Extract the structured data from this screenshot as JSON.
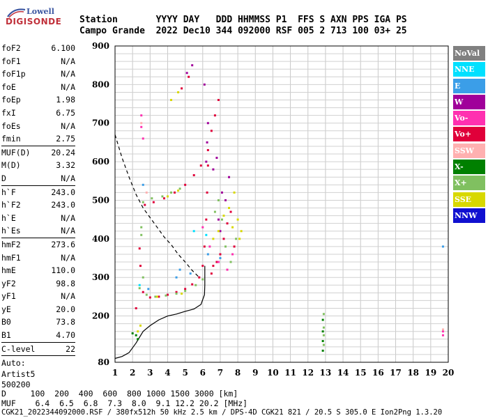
{
  "logo": {
    "brand": "Lowell",
    "product": "DIGISONDE"
  },
  "header": {
    "line1": "Station       YYYY DAY   DDD HHMMSS P1  FFS S AXN PPS IGA PS",
    "line2": "Campo Grande  2022 Dec10 344 092000 RSF 005 2 713 100 03+ 25"
  },
  "params": [
    {
      "k": "foF2",
      "v": "6.100"
    },
    {
      "k": "foF1",
      "v": "N/A"
    },
    {
      "k": "foF1p",
      "v": "N/A"
    },
    {
      "k": "foE",
      "v": "N/A"
    },
    {
      "k": "foEp",
      "v": "1.98"
    },
    {
      "k": "fxI",
      "v": "6.75"
    },
    {
      "k": "foEs",
      "v": "N/A"
    },
    {
      "k": "fmin",
      "v": "2.75"
    },
    {
      "k": "MUF(D)",
      "v": "20.24"
    },
    {
      "k": "M(D)",
      "v": "3.32"
    },
    {
      "k": "D",
      "v": "N/A"
    },
    {
      "k": "h`F",
      "v": "243.0"
    },
    {
      "k": "h`F2",
      "v": "243.0"
    },
    {
      "k": "h`E",
      "v": "N/A"
    },
    {
      "k": "h`Es",
      "v": "N/A"
    },
    {
      "k": "hmF2",
      "v": "273.6"
    },
    {
      "k": "hmF1",
      "v": "N/A"
    },
    {
      "k": "hmE",
      "v": "110.0"
    },
    {
      "k": "yF2",
      "v": "98.8"
    },
    {
      "k": "yF1",
      "v": "N/A"
    },
    {
      "k": "yE",
      "v": "20.0"
    },
    {
      "k": "B0",
      "v": "73.8"
    },
    {
      "k": "B1",
      "v": "4.70"
    },
    {
      "k": "C-level",
      "v": "22"
    }
  ],
  "auto": [
    "Auto:",
    "Artist5",
    "500200"
  ],
  "legend": [
    {
      "label": "NoVal",
      "bg": "#808080",
      "fg": "#ffffff"
    },
    {
      "label": "NNE",
      "bg": "#00e0ff",
      "fg": "#ffffff"
    },
    {
      "label": "E",
      "bg": "#3b9ee8",
      "fg": "#ffffff"
    },
    {
      "label": "W",
      "bg": "#a0009a",
      "fg": "#ffffff"
    },
    {
      "label": "Vo-",
      "bg": "#ff30b0",
      "fg": "#ffffff"
    },
    {
      "label": "Vo+",
      "bg": "#e0003a",
      "fg": "#ffffff"
    },
    {
      "label": "SSW",
      "bg": "#ffb0b0",
      "fg": "#ffffff"
    },
    {
      "label": "X-",
      "bg": "#008000",
      "fg": "#ffffff"
    },
    {
      "label": "X+",
      "bg": "#80c060",
      "fg": "#ffffff"
    },
    {
      "label": "SSE",
      "bg": "#d8d800",
      "fg": "#ffffff"
    },
    {
      "label": "NNW",
      "bg": "#1010d0",
      "fg": "#ffffff"
    }
  ],
  "footer": {
    "d_line": "D     100  200  400  600  800 1000 1500 3000 [km]",
    "muf_line": "MUF    6.4  6.5  6.8  7.3  8.0  9.1 12.2 20.2 [MHz]",
    "file_line": "CGK21_2022344092000.RSF / 380fx512h 50 kHz 2.5 km / DPS-4D CGK21 821 / 20.5 S 305.0 E Ion2Png 1.3.20"
  },
  "chart_data": {
    "type": "scatter",
    "title": "",
    "xlabel": "",
    "ylabel": "",
    "xlim": [
      1,
      20
    ],
    "ylim": [
      80,
      900
    ],
    "x_ticks": [
      "1",
      "2",
      "3",
      "4",
      "5",
      "6",
      "7",
      "8",
      "9",
      "10",
      "11",
      "12",
      "13",
      "14",
      "15",
      "16",
      "17",
      "18",
      "19",
      "20"
    ],
    "y_ticks": [
      "80",
      "200",
      "300",
      "400",
      "500",
      "600",
      "700",
      "800",
      "900"
    ],
    "grid": true,
    "series": [
      {
        "color": "#e0003a",
        "points": [
          [
            2.6,
            262
          ],
          [
            3.0,
            248
          ],
          [
            3.5,
            250
          ],
          [
            4.0,
            255
          ],
          [
            4.5,
            262
          ],
          [
            5.0,
            270
          ],
          [
            5.4,
            282
          ],
          [
            5.8,
            300
          ],
          [
            6.0,
            330
          ],
          [
            6.1,
            380
          ],
          [
            6.2,
            450
          ],
          [
            6.25,
            520
          ],
          [
            6.3,
            590
          ],
          [
            2.7,
            488
          ],
          [
            3.2,
            495
          ],
          [
            3.8,
            505
          ],
          [
            4.4,
            520
          ],
          [
            5.0,
            540
          ],
          [
            5.5,
            565
          ],
          [
            5.9,
            590
          ],
          [
            6.3,
            630
          ],
          [
            6.5,
            680
          ],
          [
            6.7,
            720
          ],
          [
            6.9,
            760
          ],
          [
            5.2,
            820
          ],
          [
            4.8,
            790
          ],
          [
            6.8,
            340
          ],
          [
            7.0,
            360
          ],
          [
            7.2,
            400
          ],
          [
            7.4,
            440
          ],
          [
            7.6,
            470
          ],
          [
            7.8,
            380
          ],
          [
            2.2,
            220
          ],
          [
            2.4,
            375
          ],
          [
            2.45,
            330
          ],
          [
            6.5,
            310
          ],
          [
            6.6,
            330
          ]
        ]
      },
      {
        "color": "#a0009a",
        "points": [
          [
            6.2,
            600
          ],
          [
            6.25,
            650
          ],
          [
            6.3,
            700
          ],
          [
            6.1,
            800
          ],
          [
            6.6,
            580
          ],
          [
            6.8,
            610
          ],
          [
            7.1,
            520
          ],
          [
            7.3,
            500
          ],
          [
            7.5,
            560
          ],
          [
            6.9,
            450
          ],
          [
            7.0,
            420
          ],
          [
            5.1,
            830
          ],
          [
            5.4,
            850
          ]
        ]
      },
      {
        "color": "#ff30b0",
        "points": [
          [
            2.5,
            720
          ],
          [
            2.5,
            690
          ],
          [
            2.6,
            660
          ],
          [
            6.0,
            430
          ],
          [
            6.4,
            380
          ],
          [
            6.9,
            340
          ],
          [
            7.4,
            320
          ],
          [
            7.7,
            360
          ],
          [
            19.7,
            160
          ],
          [
            19.7,
            150
          ]
        ]
      },
      {
        "color": "#80c060",
        "points": [
          [
            2.4,
            272
          ],
          [
            2.6,
            300
          ],
          [
            2.8,
            255
          ],
          [
            3.3,
            250
          ],
          [
            3.9,
            253
          ],
          [
            4.5,
            258
          ],
          [
            5.0,
            265
          ],
          [
            5.6,
            280
          ],
          [
            6.0,
            295
          ],
          [
            2.5,
            430
          ],
          [
            2.5,
            410
          ],
          [
            6.7,
            470
          ],
          [
            6.9,
            500
          ],
          [
            7.1,
            450
          ],
          [
            7.3,
            380
          ],
          [
            7.6,
            340
          ],
          [
            7.9,
            400
          ],
          [
            2.6,
            495
          ],
          [
            3.1,
            505
          ],
          [
            3.7,
            510
          ],
          [
            4.2,
            520
          ],
          [
            4.7,
            530
          ],
          [
            12.9,
            205
          ],
          [
            12.9,
            170
          ],
          [
            12.9,
            150
          ],
          [
            12.9,
            125
          ]
        ]
      },
      {
        "color": "#008000",
        "points": [
          [
            2.2,
            150
          ],
          [
            2.3,
            140
          ],
          [
            2.0,
            155
          ],
          [
            12.85,
            190
          ],
          [
            12.85,
            160
          ],
          [
            12.85,
            135
          ],
          [
            12.85,
            110
          ]
        ]
      },
      {
        "color": "#d8d800",
        "points": [
          [
            2.3,
            160
          ],
          [
            2.45,
            175
          ],
          [
            4.0,
            510
          ],
          [
            4.6,
            525
          ],
          [
            6.6,
            400
          ],
          [
            6.9,
            420
          ],
          [
            7.2,
            460
          ],
          [
            7.5,
            480
          ],
          [
            7.8,
            520
          ],
          [
            8.0,
            450
          ],
          [
            8.2,
            420
          ],
          [
            8.1,
            400
          ],
          [
            7.7,
            430
          ],
          [
            4.2,
            760
          ],
          [
            4.6,
            780
          ],
          [
            3.4,
            250
          ],
          [
            4.8,
            258
          ]
        ]
      },
      {
        "color": "#3b9ee8",
        "points": [
          [
            2.6,
            540
          ],
          [
            2.9,
            270
          ],
          [
            4.5,
            300
          ],
          [
            5.3,
            310
          ],
          [
            6.3,
            360
          ],
          [
            7.0,
            350
          ],
          [
            19.7,
            380
          ],
          [
            4.7,
            320
          ]
        ]
      },
      {
        "color": "#00e0ff",
        "points": [
          [
            2.4,
            280
          ],
          [
            5.5,
            420
          ],
          [
            6.2,
            410
          ]
        ]
      },
      {
        "color": "#ffb0b0",
        "points": [
          [
            2.5,
            700
          ],
          [
            19.7,
            165
          ],
          [
            2.8,
            520
          ]
        ]
      }
    ],
    "curves": [
      {
        "style": "dashed",
        "points": [
          [
            1.0,
            670
          ],
          [
            1.4,
            610
          ],
          [
            1.8,
            560
          ],
          [
            2.2,
            515
          ],
          [
            2.6,
            480
          ],
          [
            3.0,
            455
          ],
          [
            3.4,
            430
          ],
          [
            3.8,
            405
          ],
          [
            4.2,
            385
          ],
          [
            4.6,
            360
          ],
          [
            5.0,
            340
          ],
          [
            5.4,
            318
          ],
          [
            5.8,
            300
          ]
        ]
      },
      {
        "style": "solid",
        "points": [
          [
            1.0,
            90
          ],
          [
            1.4,
            95
          ],
          [
            1.8,
            105
          ],
          [
            2.2,
            130
          ],
          [
            2.6,
            160
          ],
          [
            3.0,
            175
          ],
          [
            3.5,
            190
          ],
          [
            4.0,
            200
          ],
          [
            4.5,
            205
          ],
          [
            5.0,
            212
          ],
          [
            5.5,
            218
          ],
          [
            5.9,
            230
          ],
          [
            6.1,
            255
          ],
          [
            6.12,
            280
          ],
          [
            6.12,
            330
          ]
        ]
      }
    ]
  }
}
